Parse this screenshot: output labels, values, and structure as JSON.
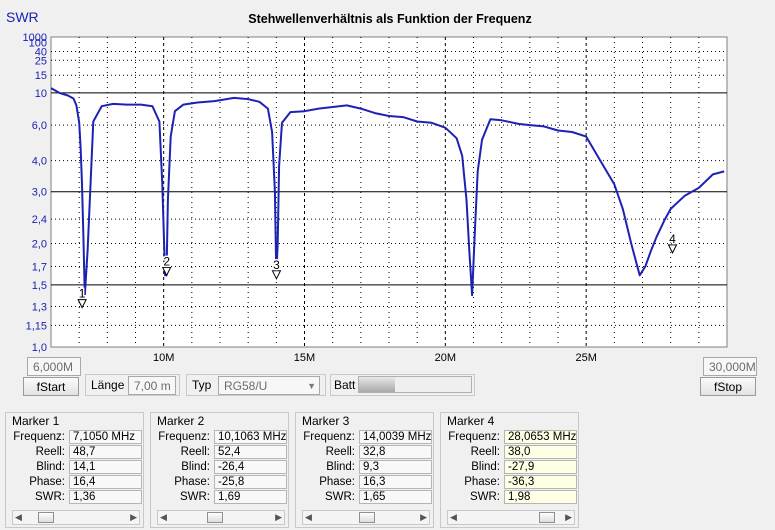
{
  "chart_data": {
    "type": "line",
    "title": "Stehwellenverhältnis als Funktion der Frequenz",
    "ylabel": "SWR",
    "xlabel": "",
    "xlim": [
      6,
      30
    ],
    "ylim": [
      1,
      1000
    ],
    "y_scale": "reflection-coefficient",
    "grid": true,
    "x_ticks": [
      10,
      15,
      20,
      25
    ],
    "x_tick_labels": [
      "10M",
      "15M",
      "20M",
      "25M"
    ],
    "y_ticks": [
      1.0,
      1.15,
      1.3,
      1.5,
      1.7,
      2.0,
      2.4,
      3.0,
      4.0,
      6.0,
      10,
      15,
      25,
      40,
      100,
      1000
    ],
    "y_tick_labels": [
      "1,0",
      "1,15",
      "1,3",
      "1,5",
      "1,7",
      "2,0",
      "2,4",
      "3,0",
      "4,0",
      "6,0",
      "10",
      "15",
      "25",
      "40",
      "100",
      "1000"
    ],
    "y_gridlines": [
      1.5,
      3.0,
      10
    ],
    "x_gridlines": [
      10,
      15,
      20,
      25
    ],
    "series": [
      {
        "color": "#1d22b4",
        "x": [
          6.0,
          6.3,
          6.6,
          6.8,
          6.9,
          7.0,
          7.05,
          7.1,
          7.15,
          7.2,
          7.3,
          7.5,
          7.8,
          8.2,
          8.7,
          9.2,
          9.6,
          9.85,
          9.95,
          10.05,
          10.1,
          10.15,
          10.25,
          10.4,
          10.7,
          11.2,
          11.8,
          12.5,
          13.0,
          13.4,
          13.7,
          13.85,
          13.95,
          14.0,
          14.05,
          14.1,
          14.2,
          14.5,
          15.0,
          15.5,
          16.0,
          16.5,
          17.0,
          17.5,
          18.0,
          18.5,
          19.0,
          19.5,
          20.0,
          20.4,
          20.6,
          20.75,
          20.85,
          20.95,
          21.05,
          21.15,
          21.3,
          21.6,
          22.0,
          22.6,
          23.0,
          23.5,
          24.0,
          24.5,
          25.0,
          25.5,
          26.0,
          26.3,
          26.6,
          26.9,
          27.1,
          27.3,
          27.5,
          27.8,
          28.0,
          28.5,
          29.0,
          29.5,
          29.9
        ],
        "y": [
          11,
          10,
          9.5,
          9,
          8,
          6.2,
          4.6,
          3.2,
          2.1,
          1.4,
          1.9,
          6.3,
          7.9,
          8.2,
          8.1,
          8.1,
          7.9,
          6.3,
          3.2,
          1.6,
          1.6,
          2.8,
          5.2,
          7.3,
          8.1,
          8.4,
          8.6,
          9.1,
          8.9,
          8.5,
          7.6,
          5.5,
          3.0,
          1.6,
          2.0,
          3.8,
          6.2,
          7.2,
          7.3,
          7.6,
          7.8,
          8.0,
          7.6,
          7.1,
          6.8,
          6.7,
          6.3,
          6.2,
          5.8,
          5.1,
          4.2,
          2.8,
          1.9,
          1.4,
          2.2,
          3.6,
          5.0,
          6.5,
          6.4,
          6.1,
          6.0,
          5.9,
          5.6,
          5.5,
          5.2,
          4.0,
          3.2,
          2.6,
          2.0,
          1.6,
          1.7,
          1.9,
          2.1,
          2.4,
          2.6,
          2.9,
          3.1,
          3.5,
          3.6
        ]
      }
    ],
    "markers": [
      {
        "label": "1",
        "x": 7.105,
        "y": 1.36
      },
      {
        "label": "2",
        "x": 10.1063,
        "y": 1.69
      },
      {
        "label": "3",
        "x": 14.0039,
        "y": 1.65
      },
      {
        "label": "4",
        "x": 28.0653,
        "y": 1.98
      }
    ]
  },
  "controls": {
    "fstart_value": "6,000M",
    "fstart_button": "fStart",
    "laenge_label": "Länge",
    "laenge_value": "7,00 m",
    "typ_label": "Typ",
    "typ_value": "RG58/U",
    "batt_label": "Batt",
    "batt_level": 0.32,
    "fstop_value": "30,000M",
    "fstop_button": "fStop"
  },
  "marker_labels": [
    "Frequenz:",
    "Reell:",
    "Blind:",
    "Phase:",
    "SWR:"
  ],
  "marker_panels": [
    {
      "title": "Marker 1",
      "values": [
        "7,1050 MHz",
        "48,7",
        "14,1",
        "16,4",
        "1,36"
      ],
      "scroll": 0.15
    },
    {
      "title": "Marker 2",
      "values": [
        "10,1063 MHz",
        "52,4",
        "-26,4",
        "-25,8",
        "1,69"
      ],
      "scroll": 0.42
    },
    {
      "title": "Marker 3",
      "values": [
        "14,0039 MHz",
        "32,8",
        "9,3",
        "16,3",
        "1,65"
      ],
      "scroll": 0.5
    },
    {
      "title": "Marker 4",
      "values": [
        "28,0653 MHz",
        "38,0",
        "-27,9",
        "-36,3",
        "1,98"
      ],
      "scroll": 0.9
    }
  ]
}
